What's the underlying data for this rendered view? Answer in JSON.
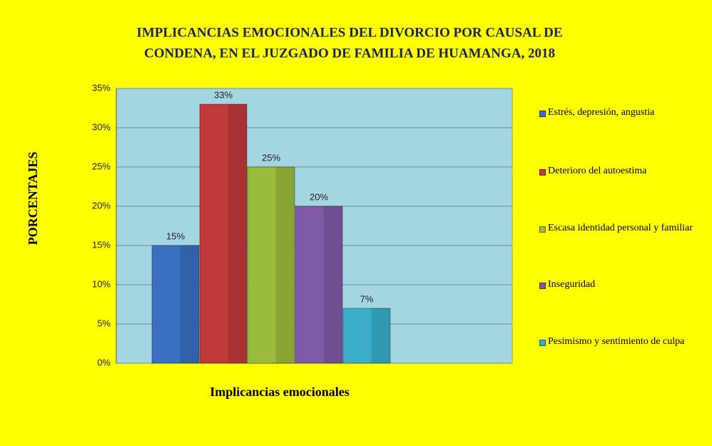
{
  "chart_data": {
    "type": "bar",
    "title": [
      "IMPLICANCIAS  EMOCIONALES DEL DIVORCIO POR CAUSAL DE",
      "CONDENA, EN EL JUZGADO DE FAMILIA DE HUAMANGA, 2018"
    ],
    "x_label": "Implicancias  emocionales",
    "y_label": "PORCENTAJES",
    "categories": [
      null
    ],
    "series": [
      {
        "name": "Estrés, depresión, angustia",
        "color": "#3b6fc0",
        "values": [
          15
        ],
        "value_labels": [
          "15%"
        ]
      },
      {
        "name": "Deterioro del autoestima",
        "color": "#c0393b",
        "values": [
          33
        ],
        "value_labels": [
          "33%"
        ]
      },
      {
        "name": "Escasa identidad personal y familiar",
        "color": "#9bbb3c",
        "values": [
          25
        ],
        "value_labels": [
          "25%"
        ]
      },
      {
        "name": "Inseguridad",
        "color": "#7f5ba6",
        "values": [
          20
        ],
        "value_labels": [
          "20%"
        ]
      },
      {
        "name": "Pesimismo y sentimiento de culpa",
        "color": "#3aaec8",
        "values": [
          7
        ],
        "value_labels": [
          "7%"
        ]
      }
    ],
    "ylim": [
      0,
      35
    ],
    "yticks": [
      {
        "value": 0,
        "label": "0%"
      },
      {
        "value": 5,
        "label": "5%"
      },
      {
        "value": 10,
        "label": "10%"
      },
      {
        "value": 15,
        "label": "15%"
      },
      {
        "value": 20,
        "label": "20%"
      },
      {
        "value": 25,
        "label": "25%"
      },
      {
        "value": 30,
        "label": "30%"
      },
      {
        "value": 35,
        "label": "35%"
      }
    ],
    "grid": true,
    "legend": "right"
  }
}
